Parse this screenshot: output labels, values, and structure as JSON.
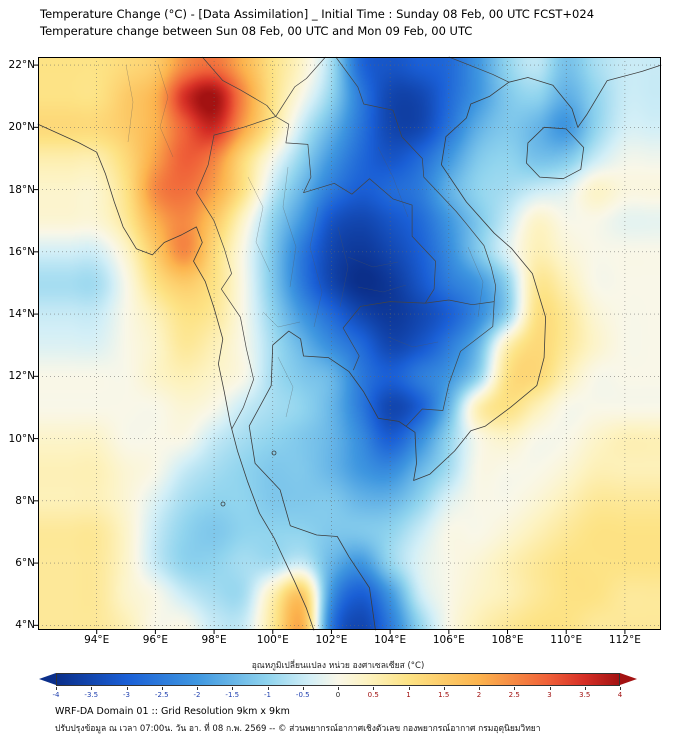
{
  "chart_data": {
    "type": "heatmap",
    "title": "Temperature Change (°C) - [Data Assimilation] _ Initial Time : Sunday 08 Feb, 00 UTC FCST+024",
    "subtitle": "Temperature change between Sun 08 Feb, 00 UTC and Mon 09 Feb, 00 UTC",
    "x_unit": "°E",
    "y_unit": "°N",
    "xlim": [
      92.0,
      113.23
    ],
    "ylim": [
      3.85,
      22.26
    ],
    "x_ticks": [
      94,
      96,
      98,
      100,
      102,
      104,
      106,
      108,
      110,
      112
    ],
    "y_ticks": [
      22,
      20,
      18,
      16,
      14,
      12,
      10,
      8,
      6,
      4
    ],
    "grid_on": true,
    "value_unit": "°C",
    "value_range": [
      -4,
      4
    ],
    "grid": {
      "lon_start": 94,
      "lon_step": 1,
      "lat_start": 22,
      "lat_step": -1,
      "values": [
        [
          1.0,
          1.2,
          1.5,
          2.5,
          2.8,
          2.0,
          1.0,
          0.3,
          -0.8,
          -2.8,
          -3.2,
          -3.0,
          -2.8,
          -2.0,
          -1.0,
          -0.6,
          -1.3,
          -0.8,
          -0.5
        ],
        [
          1.0,
          1.5,
          2.0,
          3.5,
          4.0,
          2.5,
          1.0,
          0.0,
          -1.0,
          -2.5,
          -3.5,
          -3.5,
          -2.8,
          -2.0,
          -1.2,
          -1.0,
          -1.6,
          -1.0,
          -0.5
        ],
        [
          1.2,
          1.5,
          2.0,
          3.0,
          3.6,
          2.2,
          0.8,
          -0.5,
          -1.5,
          -2.6,
          -3.5,
          -3.5,
          -2.6,
          -1.6,
          -1.2,
          -1.5,
          -2.0,
          -1.0,
          -0.4
        ],
        [
          0.6,
          1.2,
          2.2,
          3.0,
          2.6,
          1.2,
          0.0,
          -1.0,
          -2.0,
          -2.8,
          -3.2,
          -2.8,
          -2.0,
          -1.2,
          -1.0,
          -1.3,
          -1.2,
          -0.5,
          -0.1
        ],
        [
          0.3,
          1.0,
          2.5,
          2.8,
          2.2,
          1.0,
          -0.5,
          -1.5,
          -2.5,
          -3.0,
          -2.8,
          -2.5,
          -1.6,
          -1.0,
          -0.8,
          -0.5,
          -0.3,
          0.3,
          0.1
        ],
        [
          0.2,
          0.8,
          2.0,
          2.5,
          1.6,
          0.3,
          -1.0,
          -2.0,
          -3.2,
          -3.5,
          -3.2,
          -2.8,
          -2.0,
          -1.2,
          -0.5,
          0.3,
          0.0,
          0.0,
          -0.2
        ],
        [
          -0.4,
          0.3,
          1.5,
          2.5,
          1.2,
          0.0,
          -1.2,
          -2.5,
          -3.5,
          -3.8,
          -3.5,
          -3.0,
          -2.2,
          -1.2,
          -0.3,
          0.5,
          0.2,
          0.0,
          0.0
        ],
        [
          -0.8,
          0.0,
          1.0,
          1.5,
          1.0,
          0.0,
          -1.2,
          -2.5,
          -3.5,
          -4.0,
          -3.8,
          -3.2,
          -2.5,
          -2.0,
          -1.0,
          0.8,
          0.5,
          0.0,
          0.0
        ],
        [
          -0.5,
          0.0,
          0.5,
          1.0,
          0.8,
          0.0,
          -1.0,
          -2.0,
          -2.8,
          -3.5,
          -3.8,
          -3.5,
          -3.0,
          -2.2,
          -1.0,
          1.0,
          0.8,
          0.2,
          0.0
        ],
        [
          -0.3,
          0.0,
          0.3,
          0.8,
          0.5,
          0.0,
          -0.8,
          -1.5,
          -2.2,
          -2.8,
          -3.5,
          -3.2,
          -2.5,
          -1.5,
          0.5,
          1.2,
          0.8,
          0.3,
          0.0
        ],
        [
          0.0,
          0.0,
          0.3,
          0.5,
          0.3,
          0.0,
          -0.8,
          -1.2,
          -1.5,
          -2.5,
          -3.0,
          -2.5,
          -2.0,
          -1.0,
          1.0,
          1.2,
          0.5,
          0.0,
          0.0
        ],
        [
          0.0,
          0.0,
          0.0,
          0.2,
          0.0,
          -0.5,
          -0.8,
          -1.0,
          -1.5,
          -2.5,
          -3.5,
          -3.0,
          -1.5,
          0.5,
          1.0,
          0.5,
          0.0,
          0.0,
          0.0
        ],
        [
          0.3,
          0.0,
          0.0,
          0.0,
          -0.5,
          -0.8,
          -1.0,
          -1.2,
          -1.5,
          -2.2,
          -3.0,
          -2.2,
          -1.0,
          0.0,
          0.3,
          0.0,
          0.0,
          0.3,
          0.5
        ],
        [
          0.5,
          0.2,
          0.0,
          -0.5,
          -0.8,
          -1.0,
          -1.2,
          -1.2,
          -1.5,
          -2.0,
          -2.2,
          -1.5,
          -0.8,
          0.0,
          0.0,
          0.0,
          0.2,
          0.5,
          0.5
        ],
        [
          0.5,
          0.2,
          -0.3,
          -0.8,
          -1.0,
          -1.0,
          -1.2,
          -1.2,
          -1.2,
          -1.5,
          -1.5,
          -1.0,
          -0.3,
          0.0,
          0.0,
          0.2,
          0.5,
          0.8,
          0.8
        ],
        [
          0.8,
          0.3,
          -0.5,
          -1.0,
          -1.2,
          -1.0,
          -1.0,
          -1.0,
          -1.2,
          -1.2,
          -1.0,
          -0.5,
          0.0,
          0.0,
          0.2,
          0.5,
          0.8,
          1.0,
          1.0
        ],
        [
          0.8,
          0.3,
          -0.5,
          -1.0,
          -1.0,
          -0.8,
          -0.8,
          -0.5,
          -1.5,
          -2.0,
          -1.0,
          -0.3,
          0.0,
          0.2,
          0.5,
          0.8,
          1.0,
          1.0,
          1.0
        ],
        [
          0.8,
          0.3,
          0.0,
          -0.5,
          -0.8,
          -0.8,
          0.5,
          1.5,
          -2.0,
          -3.0,
          -2.0,
          -0.5,
          0.0,
          0.3,
          0.5,
          0.8,
          1.0,
          1.0,
          0.8
        ],
        [
          0.8,
          0.5,
          0.0,
          0.0,
          -0.5,
          -0.5,
          0.8,
          2.0,
          -2.5,
          -3.5,
          -2.5,
          -1.0,
          0.0,
          0.5,
          0.8,
          1.0,
          1.0,
          0.8,
          0.8
        ]
      ]
    },
    "colorbar": {
      "title": "อุณหภูมิเปลี่ยนแปลง หน่วย องศาเซลเซียส (°C)",
      "min": -4,
      "max": 4,
      "tick_step": 0.5,
      "stops": [
        [
          -4,
          "#0b2f8a"
        ],
        [
          -3,
          "#1a5fd6"
        ],
        [
          -2,
          "#3f97e0"
        ],
        [
          -1,
          "#90d4ee"
        ],
        [
          -0.4,
          "#d3eff7"
        ],
        [
          0,
          "#f9f7e8"
        ],
        [
          0.4,
          "#fdf3c2"
        ],
        [
          1,
          "#fde385"
        ],
        [
          2,
          "#fcb44e"
        ],
        [
          3,
          "#ef5f38"
        ],
        [
          3.5,
          "#d62f26"
        ],
        [
          4,
          "#a31212"
        ]
      ],
      "negative_label_color": "#1f3fae",
      "positive_label_color": "#a01010",
      "zero_label_color": "#222222"
    }
  },
  "footer": {
    "line1": "WRF-DA Domain 01 :: Grid Resolution 9km x 9km",
    "line2": "ปรับปรุงข้อมูล ณ เวลา 07:00น. วัน อา. ที่ 08 ก.พ. 2569 -- © ส่วนพยากรณ์อากาศเชิงตัวเลข กองพยากรณ์อากาศ กรมอุตุนิยมวิทยา"
  }
}
